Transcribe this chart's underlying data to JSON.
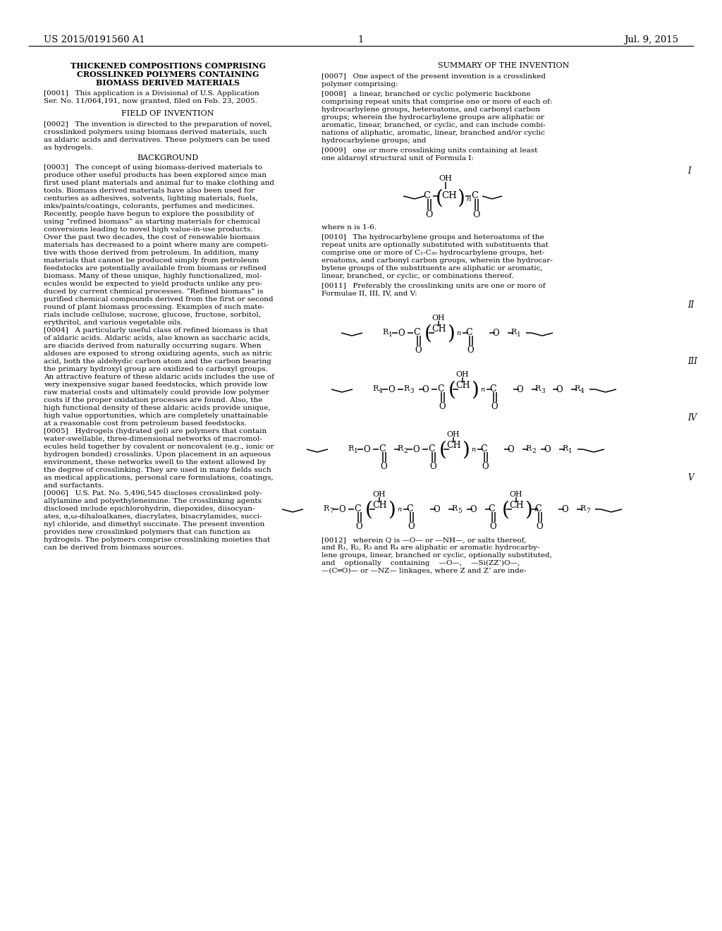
{
  "page_number": "1",
  "patent_number": "US 2015/0191560 A1",
  "patent_date": "Jul. 9, 2015",
  "background_color": "#ffffff"
}
